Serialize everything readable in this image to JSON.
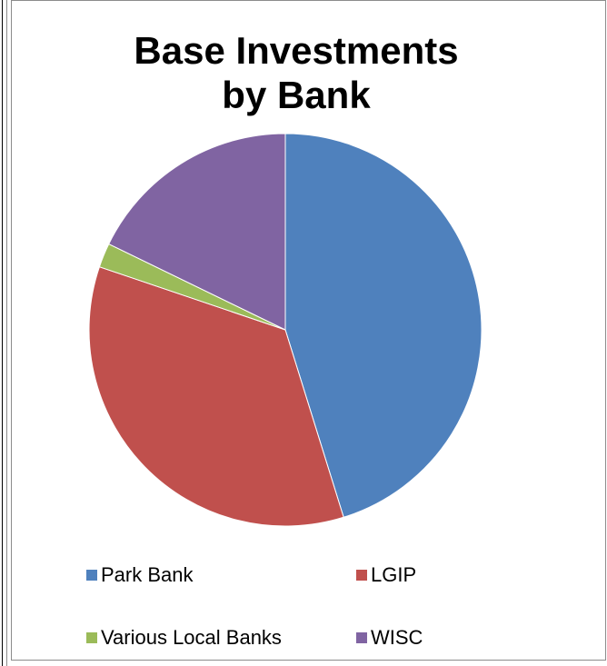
{
  "chart_data": {
    "type": "pie",
    "title_lines": [
      "Base Investments",
      "by Bank"
    ],
    "legend_position": "bottom",
    "slices": [
      {
        "label": "Park Bank",
        "value": 45.2,
        "color": "#4f81bd"
      },
      {
        "label": "LGIP",
        "value": 35.0,
        "color": "#c0504d"
      },
      {
        "label": "Various Local Banks",
        "value": 2.0,
        "color": "#9bbb59"
      },
      {
        "label": "WISC",
        "value": 17.8,
        "color": "#8064a2"
      }
    ]
  }
}
